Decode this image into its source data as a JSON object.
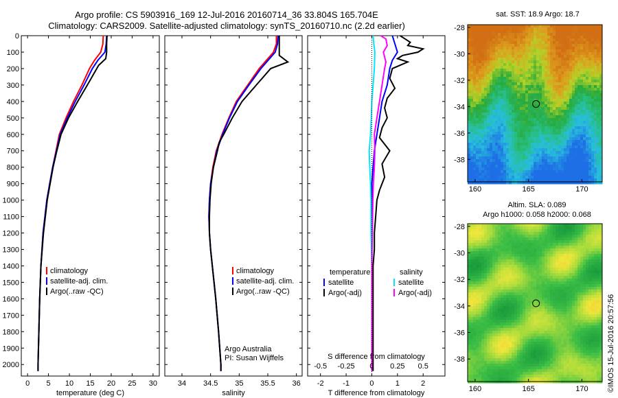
{
  "title_line1": "Argo profile: CS 5903916_169 12-Jul-2016 20160714_36 33.804S 165.704E",
  "title_line2": "Climatology: CARS2009. Satellite-adjusted climatology: synTS_20160710.nc (2.2d earlier)",
  "footer": "©IMOS 15-Jul-2016 20:57:56",
  "colors": {
    "climatology": "#ff0000",
    "satellite": "#0000ff",
    "argo": "#000000",
    "sal_satellite": "#00e5ff",
    "sal_argo": "#ff00ff"
  },
  "chart_data": [
    {
      "type": "line",
      "name": "temperature-profile",
      "xlabel": "temperature (deg C)",
      "ylabel": "",
      "xlim": [
        -1.5,
        31.5
      ],
      "ylim": [
        2070,
        0
      ],
      "xticks": [
        0,
        5,
        10,
        15,
        20,
        25,
        30
      ],
      "yticks": [
        0,
        100,
        200,
        300,
        400,
        500,
        600,
        700,
        800,
        900,
        1000,
        1100,
        1200,
        1300,
        1400,
        1500,
        1600,
        1700,
        1800,
        1900,
        2000
      ],
      "legend": [
        "climatology",
        "satellite-adj. clim.",
        "Argo(..raw -QC)"
      ],
      "series": [
        {
          "name": "climatology",
          "color": "#ff0000",
          "depth": [
            0,
            50,
            100,
            150,
            200,
            300,
            400,
            500,
            600,
            700,
            800,
            900,
            1000,
            1200,
            1400,
            1600,
            1800,
            2000,
            2040
          ],
          "values": [
            18.1,
            18.0,
            17.5,
            16.0,
            14.8,
            13.0,
            11.0,
            9.2,
            7.6,
            6.8,
            6.0,
            5.3,
            4.6,
            3.7,
            3.2,
            2.9,
            2.7,
            2.5,
            2.5
          ]
        },
        {
          "name": "satellite-adj. clim.",
          "color": "#0000ff",
          "depth": [
            0,
            50,
            100,
            150,
            200,
            300,
            400,
            500,
            600,
            700,
            800,
            900,
            1000,
            1200,
            1400,
            1600,
            1800,
            2000,
            2040
          ],
          "values": [
            18.9,
            18.8,
            18.5,
            16.8,
            15.5,
            13.5,
            11.4,
            9.5,
            7.8,
            6.9,
            6.0,
            5.3,
            4.6,
            3.7,
            3.2,
            2.9,
            2.7,
            2.5,
            2.5
          ]
        },
        {
          "name": "Argo(..raw -QC)",
          "color": "#000000",
          "depth": [
            0,
            50,
            100,
            140,
            180,
            300,
            400,
            500,
            600,
            700,
            800,
            900,
            1000,
            1200,
            1400,
            1600,
            1800,
            2000,
            2040
          ],
          "values": [
            19.0,
            18.9,
            18.9,
            18.7,
            17.0,
            14.3,
            12.0,
            9.8,
            8.0,
            7.0,
            6.1,
            5.4,
            4.7,
            3.8,
            3.2,
            2.9,
            2.7,
            2.5,
            2.5
          ]
        }
      ]
    },
    {
      "type": "line",
      "name": "salinity-profile",
      "xlabel": "salinity",
      "xlim": [
        33.7,
        36.1
      ],
      "ylim": [
        2070,
        0
      ],
      "xticks": [
        34,
        34.5,
        35,
        35.5,
        36
      ],
      "legend": [
        "climatology",
        "satellite-adj. clim.",
        "Argo(..raw -QC)"
      ],
      "annotation": [
        "Argo Australia",
        "PI: Susan Wijffels"
      ],
      "series": [
        {
          "name": "climatology",
          "color": "#ff0000",
          "depth": [
            0,
            50,
            100,
            200,
            300,
            400,
            500,
            600,
            700,
            800,
            900,
            1000,
            1100,
            1200,
            1300,
            1400,
            1500,
            1600,
            1800,
            2000,
            2040
          ],
          "values": [
            35.65,
            35.65,
            35.6,
            35.35,
            35.15,
            34.95,
            34.82,
            34.7,
            34.6,
            34.54,
            34.5,
            34.48,
            34.47,
            34.48,
            34.5,
            34.53,
            34.56,
            34.59,
            34.64,
            34.68,
            34.68
          ]
        },
        {
          "name": "satellite-adj. clim.",
          "color": "#0000ff",
          "depth": [
            0,
            50,
            100,
            200,
            300,
            400,
            500,
            600,
            700,
            800,
            900,
            1000,
            1100,
            1200,
            1300,
            1400,
            1500,
            1600,
            1800,
            2000,
            2040
          ],
          "values": [
            35.68,
            35.67,
            35.63,
            35.38,
            35.17,
            34.97,
            34.83,
            34.71,
            34.61,
            34.55,
            34.5,
            34.48,
            34.47,
            34.48,
            34.5,
            34.53,
            34.56,
            34.59,
            34.64,
            34.68,
            34.68
          ]
        },
        {
          "name": "Argo(..raw -QC)",
          "color": "#000000",
          "depth": [
            0,
            50,
            120,
            160,
            200,
            300,
            400,
            500,
            600,
            650,
            700,
            800,
            900,
            1000,
            1100,
            1200,
            1300,
            1400,
            1600,
            1800,
            2000,
            2040
          ],
          "values": [
            35.7,
            35.7,
            35.7,
            35.85,
            35.55,
            35.3,
            35.05,
            34.88,
            34.73,
            34.65,
            34.62,
            34.55,
            34.51,
            34.49,
            34.48,
            34.48,
            34.5,
            34.53,
            34.59,
            34.64,
            34.68,
            34.68
          ]
        }
      ]
    },
    {
      "type": "line",
      "name": "difference-profile",
      "xlabel": "T difference from climatology",
      "xlabel_top": "S difference from climatology",
      "xlim": [
        -2.5,
        2.85
      ],
      "ylim": [
        2070,
        0
      ],
      "xticks": [
        -2,
        -1,
        0,
        1,
        2
      ],
      "sticks_values": [
        -0.5,
        -0.25,
        0,
        0.25,
        0.5
      ],
      "sticks_labels": [
        "-0.5",
        "-0.25",
        "0",
        "0.25",
        "0.5"
      ],
      "legend_headers": [
        "temperature",
        "salinity"
      ],
      "legend": [
        "satellite",
        "Argo(-adj)",
        "satellite",
        "Argo(-adj)"
      ],
      "series": [
        {
          "name": "satellite",
          "color": "#0000ff",
          "depth": [
            0,
            50,
            100,
            150,
            200,
            300,
            400,
            500,
            600,
            700,
            800,
            900,
            1000,
            1200,
            1400,
            1600,
            1800,
            2000,
            2040
          ],
          "values": [
            0.8,
            0.9,
            1.0,
            0.8,
            0.7,
            0.6,
            0.4,
            0.3,
            0.2,
            0.1,
            0.05,
            0.0,
            0.0,
            0.0,
            0.0,
            0.0,
            0.0,
            0.0,
            0.0
          ]
        },
        {
          "name": "Argo(-adj)",
          "color": "#000000",
          "depth": [
            0,
            20,
            40,
            60,
            80,
            100,
            120,
            140,
            160,
            200,
            260,
            320,
            380,
            440,
            500,
            560,
            620,
            700,
            780,
            860,
            940,
            1000,
            1100,
            1200,
            1300,
            1400,
            1600,
            1800,
            2000,
            2040
          ],
          "values": [
            1.1,
            1.3,
            1.5,
            1.4,
            2.0,
            1.8,
            1.2,
            1.0,
            1.4,
            0.8,
            0.7,
            0.9,
            0.6,
            0.5,
            0.6,
            0.4,
            0.3,
            0.7,
            0.4,
            0.5,
            0.3,
            0.2,
            0.15,
            0.1,
            0.1,
            0.05,
            0.05,
            0.05,
            0.05,
            0.05
          ]
        },
        {
          "name": "salinity satellite",
          "color": "#00e5ff",
          "depth": [
            0,
            50,
            100,
            200,
            300,
            400,
            500,
            600,
            700,
            800,
            900,
            1000,
            1200,
            1400,
            1600,
            1800,
            2000,
            2040
          ],
          "values": [
            0.05,
            0.08,
            0.12,
            0.1,
            0.05,
            0.0,
            -0.02,
            -0.05,
            -0.1,
            -0.08,
            -0.05,
            -0.03,
            -0.03,
            0.0,
            0.0,
            0.0,
            0.0,
            0.0
          ]
        },
        {
          "name": "salinity Argo(-adj)",
          "color": "#ff00ff",
          "depth": [
            0,
            20,
            60,
            100,
            160,
            200,
            300,
            400,
            500,
            600,
            700,
            800,
            900,
            1000,
            1100,
            1200,
            1300,
            1400,
            1600,
            1800,
            2000,
            2040
          ],
          "values": [
            0.35,
            0.55,
            0.6,
            0.45,
            0.55,
            0.5,
            0.4,
            0.3,
            0.2,
            0.1,
            0.12,
            0.1,
            0.06,
            0.04,
            0.03,
            0.02,
            0.01,
            0.0,
            0.0,
            0.0,
            0.0,
            0.0
          ]
        }
      ]
    },
    {
      "type": "heatmap",
      "name": "sst-map",
      "title": "sat. SST: 18.9 Argo: 18.7",
      "xticks": [
        160,
        165,
        170
      ],
      "yticks": [
        -28,
        -30,
        -32,
        -34,
        -36,
        -38
      ],
      "xlim": [
        159.3,
        171.9
      ],
      "ylim": [
        -39.7,
        -27.8
      ],
      "marker": {
        "lon": 165.704,
        "lat": -33.804
      }
    },
    {
      "type": "heatmap",
      "name": "sla-map",
      "title": "Altim. SLA: 0.089",
      "subtitle": "Argo h1000: 0.058 h2000: 0.068",
      "xticks": [
        160,
        165,
        170
      ],
      "yticks": [
        -28,
        -30,
        -32,
        -34,
        -36,
        -38
      ],
      "xlim": [
        159.3,
        171.9
      ],
      "ylim": [
        -39.7,
        -27.8
      ],
      "marker": {
        "lon": 165.704,
        "lat": -33.804
      }
    }
  ]
}
